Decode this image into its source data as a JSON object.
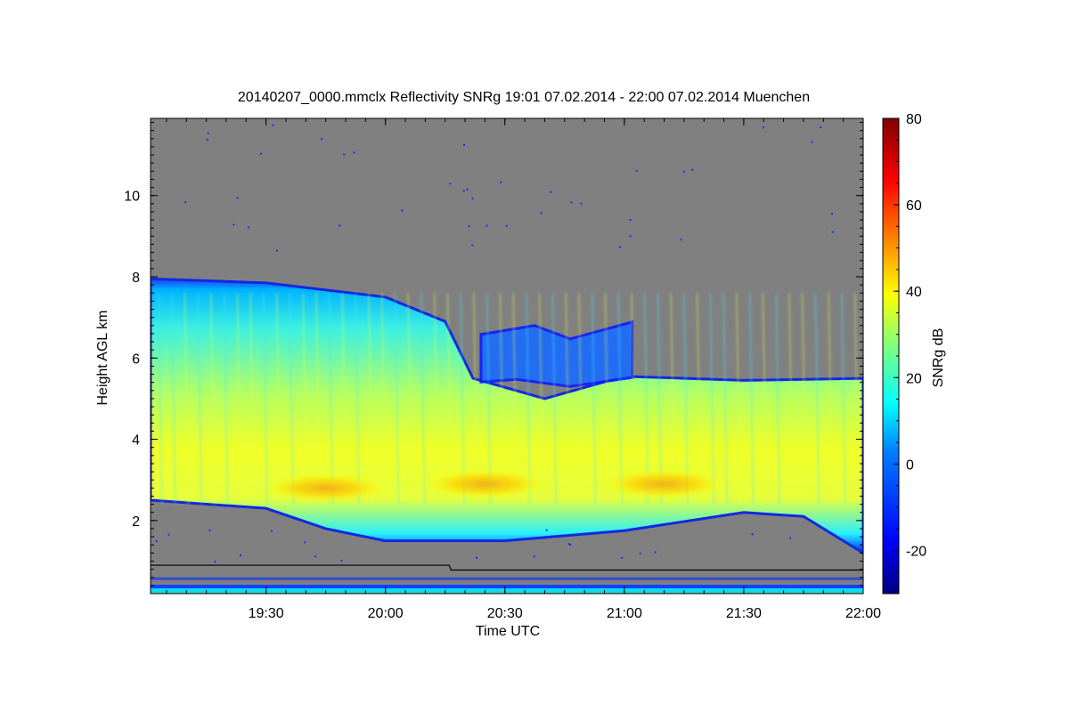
{
  "chart_data": {
    "type": "heatmap",
    "title": "20140207_0000.mmclx Reflectivity SNRg   19:01 07.02.2014 - 22:00 07.02.2014 Muenchen",
    "xlabel": "Time UTC",
    "ylabel": "Height AGL km",
    "colorbar_label": "SNRg dB",
    "x_range": [
      "19:01",
      "22:00"
    ],
    "y_range": [
      0.2,
      11.9
    ],
    "color_range": [
      -30,
      80
    ],
    "x_ticks": [
      "19:30",
      "20:00",
      "20:30",
      "21:00",
      "21:30",
      "22:00"
    ],
    "y_ticks": [
      2,
      4,
      6,
      8,
      10
    ],
    "color_ticks": [
      -20,
      0,
      20,
      40,
      60,
      80
    ],
    "no_signal_color": "#808080",
    "colormap": [
      "#00007f",
      "#0000ff",
      "#007fff",
      "#00ffff",
      "#7fff7f",
      "#ffff00",
      "#ff7f00",
      "#ff0000",
      "#7f0000"
    ],
    "cloud_top_km": [
      {
        "time": "19:01",
        "value": 7.95
      },
      {
        "time": "19:30",
        "value": 7.85
      },
      {
        "time": "20:00",
        "value": 7.5
      },
      {
        "time": "20:15",
        "value": 6.9
      },
      {
        "time": "20:22",
        "value": 5.5
      },
      {
        "time": "20:40",
        "value": 5.0
      },
      {
        "time": "21:00",
        "value": 5.55
      },
      {
        "time": "21:30",
        "value": 5.45
      },
      {
        "time": "22:00",
        "value": 5.5
      }
    ],
    "cloud_base_km": [
      {
        "time": "19:01",
        "value": 2.5
      },
      {
        "time": "19:30",
        "value": 2.3
      },
      {
        "time": "19:45",
        "value": 1.8
      },
      {
        "time": "20:00",
        "value": 1.5
      },
      {
        "time": "20:30",
        "value": 1.5
      },
      {
        "time": "21:00",
        "value": 1.75
      },
      {
        "time": "21:30",
        "value": 2.2
      },
      {
        "time": "21:45",
        "value": 2.1
      },
      {
        "time": "22:00",
        "value": 1.2
      }
    ],
    "upper_cloud_patch_km": {
      "time_start": "20:24",
      "time_end": "21:02",
      "bottom": 5.3,
      "top": 6.8
    },
    "max_snr_regions": [
      {
        "time": "19:45",
        "height_km": 2.8,
        "value_db": 45
      },
      {
        "time": "20:25",
        "height_km": 2.9,
        "value_db": 47
      },
      {
        "time": "21:10",
        "height_km": 2.9,
        "value_db": 42
      }
    ]
  }
}
